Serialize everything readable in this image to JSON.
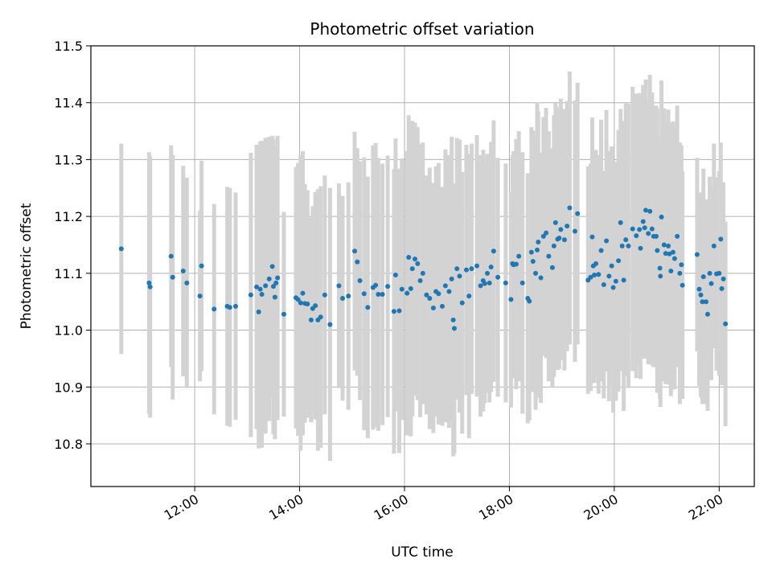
{
  "chart_data": {
    "type": "scatter",
    "title": "Photometric offset variation",
    "xlabel": "UTC time",
    "ylabel": "Photometric offset",
    "x_unit": "hours (UTC)",
    "xlim": [
      10.02,
      22.67
    ],
    "ylim": [
      10.725,
      11.5
    ],
    "x_ticks": [
      {
        "value": 12,
        "label": "12:00"
      },
      {
        "value": 14,
        "label": "14:00"
      },
      {
        "value": 16,
        "label": "16:00"
      },
      {
        "value": 18,
        "label": "18:00"
      },
      {
        "value": 20,
        "label": "20:00"
      },
      {
        "value": 22,
        "label": "22:00"
      }
    ],
    "y_ticks": [
      {
        "value": 10.8,
        "label": "10.8"
      },
      {
        "value": 10.9,
        "label": "10.9"
      },
      {
        "value": 11.0,
        "label": "11.0"
      },
      {
        "value": 11.1,
        "label": "11.1"
      },
      {
        "value": 11.2,
        "label": "11.2"
      },
      {
        "value": 11.3,
        "label": "11.3"
      },
      {
        "value": 11.4,
        "label": "11.4"
      },
      {
        "value": 11.5,
        "label": "11.5"
      }
    ],
    "grid": true,
    "colors": {
      "points": "#1f77b4",
      "errorbars": "#d3d3d3",
      "grid": "#b0b0b0"
    },
    "points": [
      [
        10.6,
        11.143,
        0.185
      ],
      [
        11.13,
        11.083,
        0.23
      ],
      [
        11.15,
        11.076,
        0.23
      ],
      [
        11.55,
        11.13,
        0.195
      ],
      [
        11.58,
        11.093,
        0.215
      ],
      [
        11.78,
        11.104,
        0.185
      ],
      [
        11.85,
        11.083,
        0.185
      ],
      [
        12.1,
        11.06,
        0.15
      ],
      [
        12.13,
        11.113,
        0.185
      ],
      [
        12.37,
        11.037,
        0.185
      ],
      [
        12.62,
        11.042,
        0.21
      ],
      [
        12.67,
        11.04,
        0.21
      ],
      [
        12.78,
        11.042,
        0.2
      ],
      [
        13.07,
        11.062,
        0.25
      ],
      [
        13.18,
        11.076,
        0.25
      ],
      [
        13.22,
        11.032,
        0.24
      ],
      [
        13.25,
        11.072,
        0.26
      ],
      [
        13.28,
        11.063,
        0.27
      ],
      [
        13.35,
        11.078,
        0.26
      ],
      [
        13.42,
        11.09,
        0.25
      ],
      [
        13.48,
        11.112,
        0.23
      ],
      [
        13.5,
        11.077,
        0.26
      ],
      [
        13.53,
        11.058,
        0.25
      ],
      [
        13.55,
        11.083,
        0.24
      ],
      [
        13.58,
        11.092,
        0.25
      ],
      [
        13.7,
        11.028,
        0.18
      ],
      [
        13.93,
        11.057,
        0.23
      ],
      [
        13.97,
        11.054,
        0.24
      ],
      [
        14.02,
        11.048,
        0.26
      ],
      [
        14.06,
        11.065,
        0.25
      ],
      [
        14.1,
        11.047,
        0.21
      ],
      [
        14.15,
        11.046,
        0.2
      ],
      [
        14.22,
        11.018,
        0.18
      ],
      [
        14.25,
        11.038,
        0.18
      ],
      [
        14.3,
        11.043,
        0.2
      ],
      [
        14.35,
        11.018,
        0.23
      ],
      [
        14.4,
        11.023,
        0.23
      ],
      [
        14.48,
        11.062,
        0.21
      ],
      [
        14.58,
        11.01,
        0.24
      ],
      [
        14.75,
        11.078,
        0.18
      ],
      [
        14.82,
        11.056,
        0.18
      ],
      [
        14.93,
        11.06,
        0.2
      ],
      [
        15.05,
        11.139,
        0.21
      ],
      [
        15.1,
        11.12,
        0.2
      ],
      [
        15.15,
        11.087,
        0.21
      ],
      [
        15.23,
        11.064,
        0.24
      ],
      [
        15.3,
        11.04,
        0.23
      ],
      [
        15.4,
        11.075,
        0.25
      ],
      [
        15.45,
        11.079,
        0.25
      ],
      [
        15.5,
        11.063,
        0.24
      ],
      [
        15.58,
        11.063,
        0.23
      ],
      [
        15.68,
        11.077,
        0.23
      ],
      [
        15.8,
        11.033,
        0.25
      ],
      [
        15.83,
        11.097,
        0.24
      ],
      [
        15.9,
        11.034,
        0.25
      ],
      [
        15.95,
        11.072,
        0.23
      ],
      [
        16.05,
        11.065,
        0.25
      ],
      [
        16.08,
        11.128,
        0.25
      ],
      [
        16.12,
        11.073,
        0.26
      ],
      [
        16.15,
        11.108,
        0.26
      ],
      [
        16.2,
        11.125,
        0.24
      ],
      [
        16.25,
        11.117,
        0.24
      ],
      [
        16.3,
        11.087,
        0.24
      ],
      [
        16.35,
        11.1,
        0.23
      ],
      [
        16.42,
        11.062,
        0.21
      ],
      [
        16.48,
        11.056,
        0.23
      ],
      [
        16.55,
        11.039,
        0.22
      ],
      [
        16.6,
        11.068,
        0.22
      ],
      [
        16.65,
        11.064,
        0.23
      ],
      [
        16.72,
        11.042,
        0.21
      ],
      [
        16.78,
        11.078,
        0.24
      ],
      [
        16.85,
        11.068,
        0.24
      ],
      [
        16.9,
        11.09,
        0.25
      ],
      [
        16.93,
        11.018,
        0.24
      ],
      [
        16.95,
        11.003,
        0.22
      ],
      [
        17.0,
        11.108,
        0.23
      ],
      [
        17.05,
        11.095,
        0.24
      ],
      [
        17.1,
        11.048,
        0.23
      ],
      [
        17.18,
        11.106,
        0.22
      ],
      [
        17.23,
        11.06,
        0.25
      ],
      [
        17.28,
        11.108,
        0.22
      ],
      [
        17.38,
        11.113,
        0.23
      ],
      [
        17.45,
        11.078,
        0.23
      ],
      [
        17.5,
        11.087,
        0.23
      ],
      [
        17.53,
        11.082,
        0.21
      ],
      [
        17.58,
        11.1,
        0.21
      ],
      [
        17.62,
        11.083,
        0.21
      ],
      [
        17.65,
        11.111,
        0.22
      ],
      [
        17.7,
        11.139,
        0.23
      ],
      [
        17.78,
        11.093,
        0.21
      ],
      [
        17.93,
        11.083,
        0.21
      ],
      [
        18.03,
        11.054,
        0.19
      ],
      [
        18.06,
        11.117,
        0.19
      ],
      [
        18.08,
        11.115,
        0.2
      ],
      [
        18.13,
        11.116,
        0.22
      ],
      [
        18.18,
        11.13,
        0.22
      ],
      [
        18.25,
        11.083,
        0.23
      ],
      [
        18.35,
        11.056,
        0.22
      ],
      [
        18.38,
        11.051,
        0.21
      ],
      [
        18.42,
        11.137,
        0.22
      ],
      [
        18.45,
        11.121,
        0.23
      ],
      [
        18.5,
        11.1,
        0.24
      ],
      [
        18.53,
        11.141,
        0.26
      ],
      [
        18.55,
        11.155,
        0.23
      ],
      [
        18.6,
        11.092,
        0.22
      ],
      [
        18.65,
        11.165,
        0.21
      ],
      [
        18.7,
        11.171,
        0.22
      ],
      [
        18.75,
        11.13,
        0.22
      ],
      [
        18.82,
        11.11,
        0.21
      ],
      [
        18.85,
        11.148,
        0.23
      ],
      [
        18.88,
        11.189,
        0.21
      ],
      [
        18.92,
        11.16,
        0.23
      ],
      [
        18.95,
        11.162,
        0.23
      ],
      [
        18.98,
        11.177,
        0.23
      ],
      [
        19.05,
        11.159,
        0.23
      ],
      [
        19.1,
        11.183,
        0.22
      ],
      [
        19.15,
        11.215,
        0.24
      ],
      [
        19.25,
        11.174,
        0.23
      ],
      [
        19.3,
        11.205,
        0.23
      ],
      [
        19.5,
        11.088,
        0.2
      ],
      [
        19.55,
        11.093,
        0.2
      ],
      [
        19.58,
        11.164,
        0.21
      ],
      [
        19.6,
        11.113,
        0.2
      ],
      [
        19.62,
        11.097,
        0.19
      ],
      [
        19.65,
        11.117,
        0.2
      ],
      [
        19.7,
        11.098,
        0.21
      ],
      [
        19.75,
        11.14,
        0.23
      ],
      [
        19.8,
        11.08,
        0.2
      ],
      [
        19.85,
        11.157,
        0.23
      ],
      [
        19.9,
        11.095,
        0.22
      ],
      [
        19.95,
        11.113,
        0.21
      ],
      [
        19.98,
        11.075,
        0.22
      ],
      [
        20.03,
        11.086,
        0.21
      ],
      [
        20.08,
        11.122,
        0.23
      ],
      [
        20.12,
        11.189,
        0.2
      ],
      [
        20.15,
        11.148,
        0.22
      ],
      [
        20.18,
        11.088,
        0.23
      ],
      [
        20.22,
        11.159,
        0.24
      ],
      [
        20.27,
        11.148,
        0.25
      ],
      [
        20.35,
        11.178,
        0.25
      ],
      [
        20.42,
        11.166,
        0.25
      ],
      [
        20.48,
        11.177,
        0.24
      ],
      [
        20.5,
        11.144,
        0.23
      ],
      [
        20.55,
        11.191,
        0.24
      ],
      [
        20.58,
        11.18,
        0.23
      ],
      [
        20.6,
        11.211,
        0.23
      ],
      [
        20.65,
        11.17,
        0.23
      ],
      [
        20.68,
        11.209,
        0.24
      ],
      [
        20.72,
        11.178,
        0.24
      ],
      [
        20.75,
        11.165,
        0.23
      ],
      [
        20.8,
        11.165,
        0.23
      ],
      [
        20.82,
        11.14,
        0.25
      ],
      [
        20.87,
        11.109,
        0.23
      ],
      [
        20.88,
        11.095,
        0.23
      ],
      [
        20.9,
        11.199,
        0.24
      ],
      [
        20.95,
        11.15,
        0.24
      ],
      [
        20.98,
        11.135,
        0.23
      ],
      [
        21.03,
        11.148,
        0.24
      ],
      [
        21.05,
        11.134,
        0.23
      ],
      [
        21.08,
        11.104,
        0.22
      ],
      [
        21.12,
        11.137,
        0.23
      ],
      [
        21.15,
        11.126,
        0.23
      ],
      [
        21.2,
        11.165,
        0.23
      ],
      [
        21.25,
        11.1,
        0.23
      ],
      [
        21.28,
        11.115,
        0.21
      ],
      [
        21.3,
        11.079,
        0.2
      ],
      [
        21.58,
        11.133,
        0.17
      ],
      [
        21.62,
        11.072,
        0.17
      ],
      [
        21.65,
        11.062,
        0.18
      ],
      [
        21.68,
        11.05,
        0.18
      ],
      [
        21.7,
        11.094,
        0.19
      ],
      [
        21.75,
        11.05,
        0.18
      ],
      [
        21.78,
        11.028,
        0.17
      ],
      [
        21.82,
        11.1,
        0.17
      ],
      [
        21.85,
        11.082,
        0.17
      ],
      [
        21.9,
        11.148,
        0.18
      ],
      [
        21.95,
        11.099,
        0.17
      ],
      [
        22.0,
        11.1,
        0.18
      ],
      [
        22.03,
        11.16,
        0.17
      ],
      [
        22.05,
        11.073,
        0.17
      ],
      [
        22.08,
        11.09,
        0.17
      ],
      [
        22.12,
        11.011,
        0.18
      ]
    ]
  }
}
